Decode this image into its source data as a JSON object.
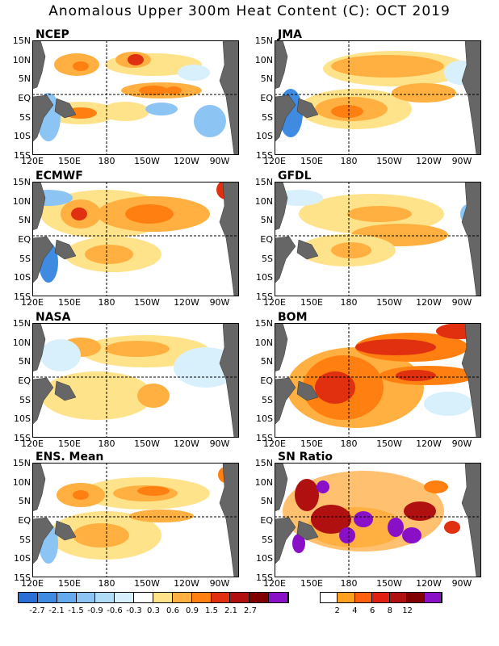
{
  "title": "Anomalous Upper 300m Heat Content (C): OCT 2019",
  "lat_labels": [
    "15N",
    "10N",
    "5N",
    "EQ",
    "5S",
    "10S",
    "15S"
  ],
  "lon_labels": [
    "120E",
    "150E",
    "180",
    "150W",
    "120W",
    "90W"
  ],
  "panels": [
    {
      "name": "NCEP"
    },
    {
      "name": "JMA"
    },
    {
      "name": "ECMWF"
    },
    {
      "name": "GFDL"
    },
    {
      "name": "NASA"
    },
    {
      "name": "BOM"
    },
    {
      "name": "ENS. Mean"
    },
    {
      "name": "SN Ratio"
    }
  ],
  "colorbar_anomaly": {
    "labels": [
      "-2.7",
      "-2.1",
      "-1.5",
      "-0.9",
      "-0.6",
      "-0.3",
      "0.3",
      "0.6",
      "0.9",
      "1.5",
      "2.1",
      "2.7"
    ],
    "colors": [
      "#2a6fd6",
      "#3f8be2",
      "#66aaee",
      "#8cc4f4",
      "#b0dcf8",
      "#d8f0fc",
      "#ffffff",
      "#ffe38a",
      "#ffb040",
      "#ff8010",
      "#e03010",
      "#b01010",
      "#800000",
      "#8a10c8"
    ]
  },
  "colorbar_sn": {
    "labels": [
      "2",
      "4",
      "6",
      "8",
      "12"
    ],
    "colors": [
      "#ffffff",
      "#ffa020",
      "#ff6010",
      "#e02010",
      "#b01010",
      "#800000",
      "#8a10c8"
    ]
  }
}
